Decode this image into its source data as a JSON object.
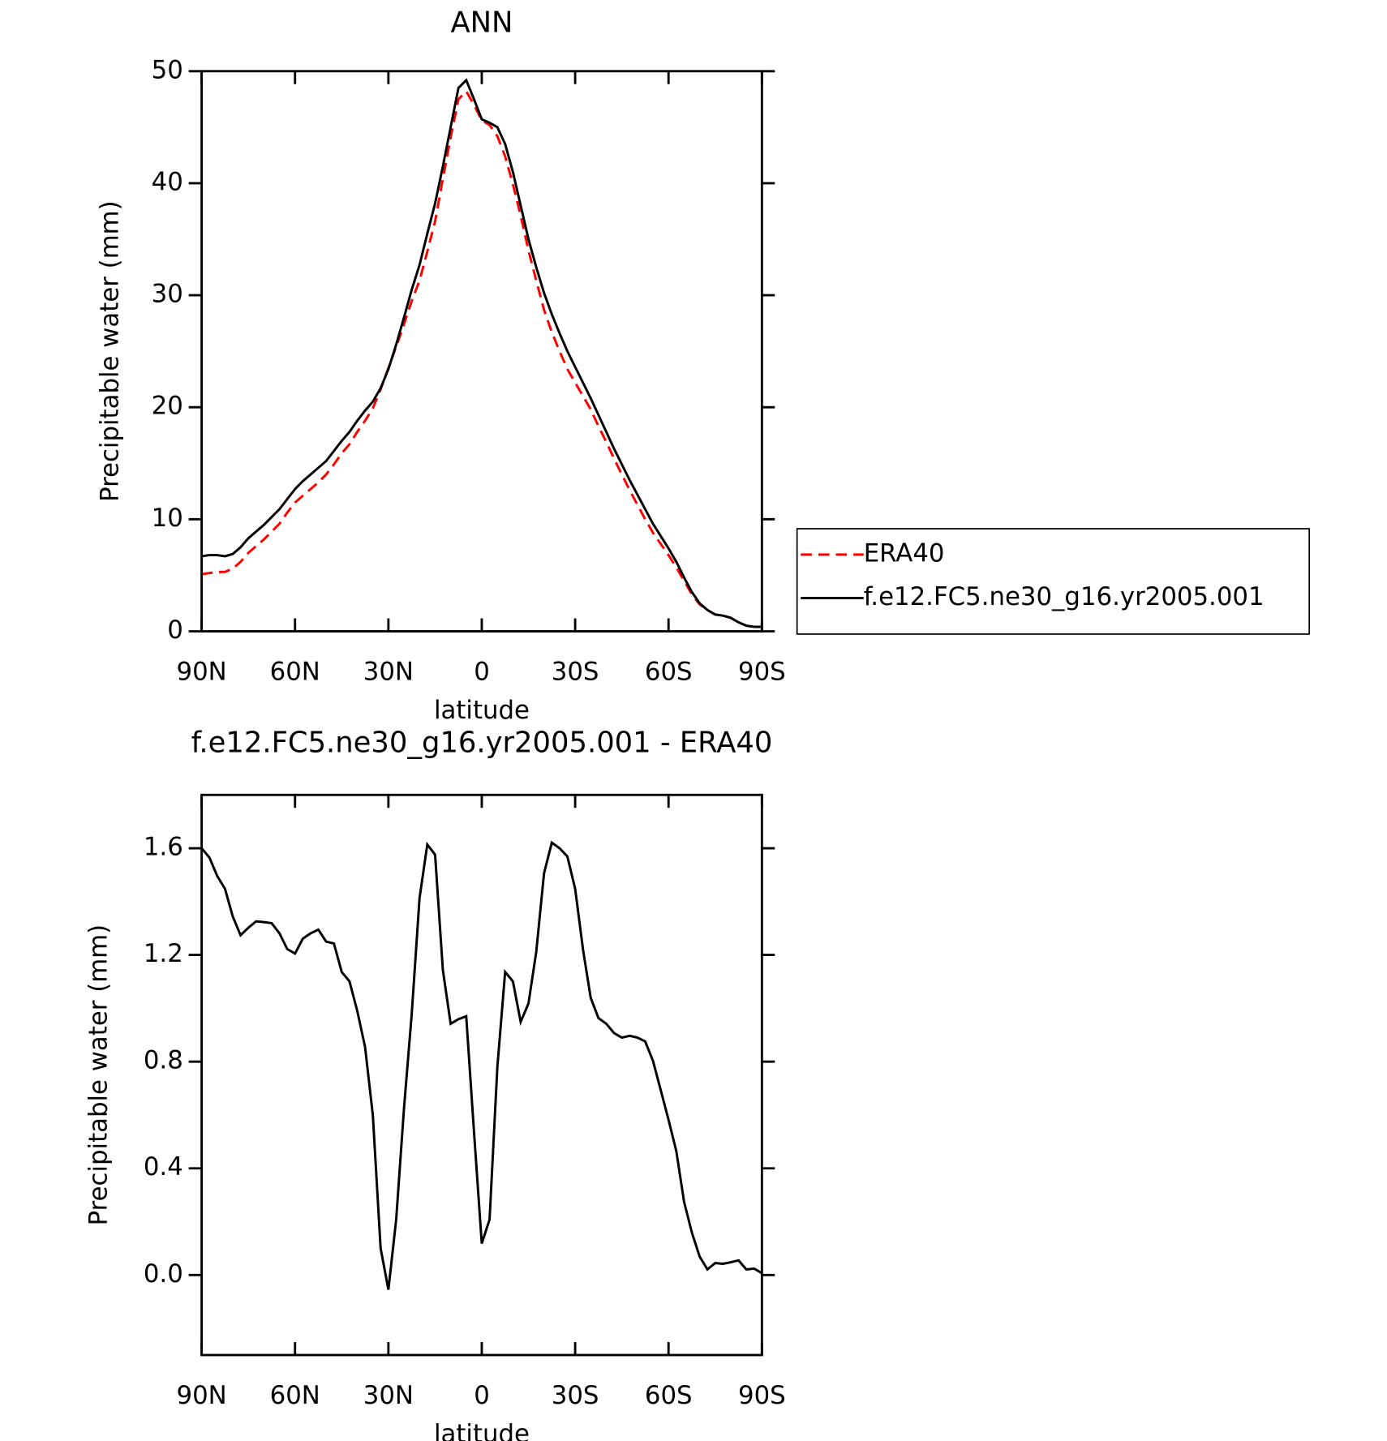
{
  "chart_data": [
    {
      "type": "line",
      "title": "ANN",
      "xlabel": "latitude",
      "ylabel": "Precipitable water (mm)",
      "x": [
        90,
        87.5,
        85,
        82.5,
        80,
        77.5,
        75,
        72.5,
        70,
        67.5,
        65,
        62.5,
        60,
        57.5,
        55,
        52.5,
        50,
        47.5,
        45,
        42.5,
        40,
        37.5,
        35,
        32.5,
        30,
        27.5,
        25,
        22.5,
        20,
        17.5,
        15,
        12.5,
        10,
        7.5,
        5,
        2.5,
        0,
        -2.5,
        -5,
        -7.5,
        -10,
        -12.5,
        -15,
        -17.5,
        -20,
        -22.5,
        -25,
        -27.5,
        -30,
        -32.5,
        -35,
        -37.5,
        -40,
        -42.5,
        -45,
        -47.5,
        -50,
        -52.5,
        -55,
        -57.5,
        -60,
        -62.5,
        -65,
        -67.5,
        -70,
        -72.5,
        -75,
        -77.5,
        -80,
        -82.5,
        -85,
        -87.5,
        -90
      ],
      "series": [
        {
          "name": "ERA40",
          "color": "#ff0000",
          "linestyle": "dashed",
          "values": [
            5.1,
            5.2,
            5.3,
            5.3,
            5.6,
            6.2,
            7.0,
            7.6,
            8.2,
            8.9,
            9.6,
            10.6,
            11.5,
            12.1,
            12.7,
            13.3,
            14.0,
            14.9,
            15.9,
            16.7,
            17.8,
            18.8,
            19.9,
            21.6,
            23.5,
            25.4,
            27.4,
            29.5,
            31.3,
            33.9,
            36.6,
            40.4,
            44.1,
            47.5,
            48.2,
            47.0,
            45.6,
            45.2,
            44.2,
            42.4,
            39.9,
            37.1,
            34.0,
            31.3,
            28.7,
            26.7,
            25.0,
            23.4,
            22.2,
            21.0,
            19.8,
            18.3,
            16.9,
            15.4,
            14.0,
            12.6,
            11.3,
            10.0,
            8.8,
            7.8,
            6.8,
            5.7,
            4.5,
            3.3,
            2.4,
            1.9,
            1.5,
            1.4,
            1.2,
            0.8,
            0.5,
            0.4,
            0.4
          ]
        },
        {
          "name": "f.e12.FC5.ne30_g16.yr2005.001",
          "color": "#000000",
          "linestyle": "solid",
          "values": [
            6.7,
            6.8,
            6.8,
            6.7,
            6.9,
            7.5,
            8.3,
            8.9,
            9.5,
            10.2,
            10.9,
            11.8,
            12.7,
            13.4,
            14.0,
            14.6,
            15.2,
            16.1,
            17.0,
            17.8,
            18.8,
            19.7,
            20.5,
            21.7,
            23.4,
            25.6,
            28.0,
            30.5,
            32.7,
            35.5,
            38.2,
            41.5,
            45.0,
            48.5,
            49.2,
            47.5,
            45.7,
            45.4,
            45.0,
            43.5,
            41.0,
            38.0,
            35.0,
            32.5,
            30.2,
            28.3,
            26.6,
            25.0,
            23.6,
            22.2,
            20.8,
            19.3,
            17.8,
            16.3,
            14.9,
            13.5,
            12.2,
            10.9,
            9.6,
            8.5,
            7.4,
            6.2,
            4.8,
            3.5,
            2.5,
            1.9,
            1.5,
            1.4,
            1.2,
            0.8,
            0.5,
            0.4,
            0.4
          ]
        }
      ],
      "xlim": [
        90,
        -90
      ],
      "xticks": [
        {
          "value": 90,
          "label": "90N"
        },
        {
          "value": 60,
          "label": "60N"
        },
        {
          "value": 30,
          "label": "30N"
        },
        0,
        {
          "value": -30,
          "label": "30S"
        },
        {
          "value": -60,
          "label": "60S"
        },
        {
          "value": -90,
          "label": "90S"
        }
      ],
      "ylim": [
        0,
        50
      ],
      "yticks": [
        0,
        10,
        20,
        30,
        40,
        50
      ],
      "legend": "right"
    },
    {
      "type": "line",
      "title": "f.e12.FC5.ne30_g16.yr2005.001 - ERA40",
      "xlabel": "latitude",
      "ylabel": "Precipitable water (mm)",
      "x": [
        90,
        87.5,
        85,
        82.5,
        80,
        77.5,
        75,
        72.5,
        70,
        67.5,
        65,
        62.5,
        60,
        57.5,
        55,
        52.5,
        50,
        47.5,
        45,
        42.5,
        40,
        37.5,
        35,
        32.5,
        30,
        27.5,
        25,
        22.5,
        20,
        17.5,
        15,
        12.5,
        10,
        7.5,
        5,
        2.5,
        0,
        -2.5,
        -5,
        -7.5,
        -10,
        -12.5,
        -15,
        -17.5,
        -20,
        -22.5,
        -25,
        -27.5,
        -30,
        -32.5,
        -35,
        -37.5,
        -40,
        -42.5,
        -45,
        -47.5,
        -50,
        -52.5,
        -55,
        -57.5,
        -60,
        -62.5,
        -65,
        -67.5,
        -70,
        -72.5,
        -75,
        -77.5,
        -80,
        -82.5,
        -85,
        -87.5,
        -90
      ],
      "values": [
        1.6,
        1.565,
        1.496,
        1.448,
        1.344,
        1.274,
        1.302,
        1.326,
        1.323,
        1.319,
        1.281,
        1.222,
        1.205,
        1.261,
        1.281,
        1.295,
        1.25,
        1.243,
        1.136,
        1.101,
        0.99,
        0.855,
        0.599,
        0.1,
        -0.055,
        0.208,
        0.623,
        0.98,
        1.413,
        1.614,
        1.576,
        1.143,
        0.942,
        0.959,
        0.97,
        0.537,
        0.118,
        0.208,
        0.779,
        1.136,
        1.101,
        0.949,
        1.018,
        1.212,
        1.506,
        1.621,
        1.6,
        1.569,
        1.448,
        1.222,
        1.039,
        0.963,
        0.942,
        0.907,
        0.89,
        0.897,
        0.89,
        0.876,
        0.803,
        0.693,
        0.582,
        0.464,
        0.274,
        0.159,
        0.069,
        0.021,
        0.045,
        0.042,
        0.048,
        0.055,
        0.021,
        0.024,
        0.007
      ],
      "color": "#000000",
      "xlim": [
        90,
        -90
      ],
      "xticks": [
        {
          "value": 90,
          "label": "90N"
        },
        {
          "value": 60,
          "label": "60N"
        },
        {
          "value": 30,
          "label": "30N"
        },
        0,
        {
          "value": -30,
          "label": "30S"
        },
        {
          "value": -60,
          "label": "60S"
        },
        {
          "value": -90,
          "label": "90S"
        }
      ],
      "ylim": [
        -0.3,
        1.8
      ],
      "yticks": [
        {
          "value": 0,
          "label": "0.0"
        },
        0.4,
        0.8,
        1.2,
        1.6
      ]
    }
  ]
}
